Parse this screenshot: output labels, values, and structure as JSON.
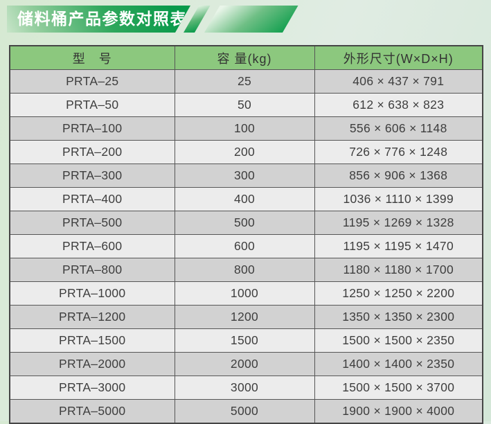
{
  "banner": {
    "title": "储料桶产品参数对照表"
  },
  "colors": {
    "green_dark": "#089a4a",
    "header_green": "#8cc87e",
    "row_gray": "#d2d2d2",
    "row_light": "#ececec",
    "border": "#454545",
    "text": "#3e3e3e",
    "page_bg": "#dbe9db"
  },
  "table": {
    "headers": [
      "型　号",
      "容 量(kg)",
      "外形尺寸(W×D×H)"
    ],
    "rows": [
      {
        "model": "PRTA–25",
        "capacity": "25",
        "size": "406 × 437 × 791"
      },
      {
        "model": "PRTA–50",
        "capacity": "50",
        "size": "612 × 638 × 823"
      },
      {
        "model": "PRTA–100",
        "capacity": "100",
        "size": "556 × 606 × 1148"
      },
      {
        "model": "PRTA–200",
        "capacity": "200",
        "size": "726 × 776 × 1248"
      },
      {
        "model": "PRTA–300",
        "capacity": "300",
        "size": "856 × 906 × 1368"
      },
      {
        "model": "PRTA–400",
        "capacity": "400",
        "size": "1036 × 1110 × 1399"
      },
      {
        "model": "PRTA–500",
        "capacity": "500",
        "size": "1195 × 1269 × 1328"
      },
      {
        "model": "PRTA–600",
        "capacity": "600",
        "size": "1195 × 1195 × 1470"
      },
      {
        "model": "PRTA–800",
        "capacity": "800",
        "size": "1180 × 1180 × 1700"
      },
      {
        "model": "PRTA–1000",
        "capacity": "1000",
        "size": "1250 × 1250 × 2200"
      },
      {
        "model": "PRTA–1200",
        "capacity": "1200",
        "size": "1350 × 1350 × 2300"
      },
      {
        "model": "PRTA–1500",
        "capacity": "1500",
        "size": "1500 × 1500 × 2350"
      },
      {
        "model": "PRTA–2000",
        "capacity": "2000",
        "size": "1400 × 1400 × 2350"
      },
      {
        "model": "PRTA–3000",
        "capacity": "3000",
        "size": "1500 × 1500 × 3700"
      },
      {
        "model": "PRTA–5000",
        "capacity": "5000",
        "size": "1900 × 1900 × 4000"
      }
    ]
  }
}
